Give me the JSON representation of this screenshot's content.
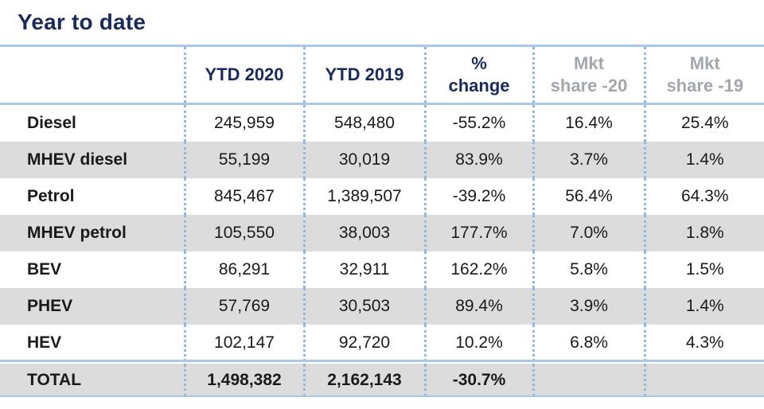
{
  "title": "Year to date",
  "columns": {
    "label": "",
    "ytd_2020": "YTD 2020",
    "ytd_2019": "YTD 2019",
    "pct_change_line1": "%",
    "pct_change_line2": "change",
    "mkt_share_20_line1": "Mkt",
    "mkt_share_20_line2": "share -20",
    "mkt_share_19_line1": "Mkt",
    "mkt_share_19_line2": "share -19"
  },
  "rows": [
    {
      "label": "Diesel",
      "ytd_2020": "245,959",
      "ytd_2019": "548,480",
      "pct_change": "-55.2%",
      "mkt_share_20": "16.4%",
      "mkt_share_19": "25.4%"
    },
    {
      "label": "MHEV diesel",
      "ytd_2020": "55,199",
      "ytd_2019": "30,019",
      "pct_change": "83.9%",
      "mkt_share_20": "3.7%",
      "mkt_share_19": "1.4%"
    },
    {
      "label": "Petrol",
      "ytd_2020": "845,467",
      "ytd_2019": "1,389,507",
      "pct_change": "-39.2%",
      "mkt_share_20": "56.4%",
      "mkt_share_19": "64.3%"
    },
    {
      "label": "MHEV petrol",
      "ytd_2020": "105,550",
      "ytd_2019": "38,003",
      "pct_change": "177.7%",
      "mkt_share_20": "7.0%",
      "mkt_share_19": "1.8%"
    },
    {
      "label": "BEV",
      "ytd_2020": "86,291",
      "ytd_2019": "32,911",
      "pct_change": "162.2%",
      "mkt_share_20": "5.8%",
      "mkt_share_19": "1.5%"
    },
    {
      "label": "PHEV",
      "ytd_2020": "57,769",
      "ytd_2019": "30,503",
      "pct_change": "89.4%",
      "mkt_share_20": "3.9%",
      "mkt_share_19": "1.4%"
    },
    {
      "label": "HEV",
      "ytd_2020": "102,147",
      "ytd_2019": "92,720",
      "pct_change": "10.2%",
      "mkt_share_20": "6.8%",
      "mkt_share_19": "4.3%"
    }
  ],
  "total": {
    "label": "TOTAL",
    "ytd_2020": "1,498,382",
    "ytd_2019": "2,162,143",
    "pct_change": "-30.7%",
    "mkt_share_20": "",
    "mkt_share_19": ""
  },
  "colors": {
    "title": "#1b2a5c",
    "header_blue": "#1b2a5c",
    "header_grey": "#a3a7ad",
    "rule": "#a9c8e8",
    "separator_dots": "#8fbbe3",
    "shaded_row": "#dcdcdc"
  }
}
